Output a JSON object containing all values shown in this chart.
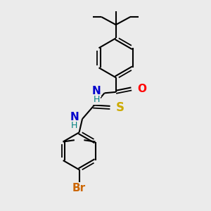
{
  "bg_color": "#ebebeb",
  "line_color": "#000000",
  "bond_width": 1.5,
  "atom_colors": {
    "N": "#0000cc",
    "NH": "#008080",
    "O": "#ff0000",
    "S": "#ccaa00",
    "Br": "#cc6600",
    "C": "#000000"
  },
  "font_size_atom": 11,
  "font_size_small": 9
}
